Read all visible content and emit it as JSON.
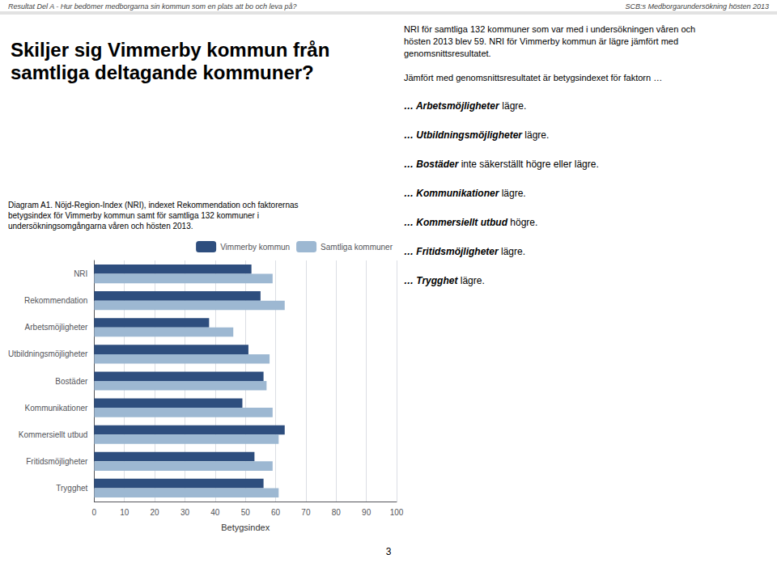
{
  "chart_data": {
    "type": "bar",
    "orientation": "horizontal",
    "title": "Skiljer sig Vimmerby kommun från\nsamtliga deltagande kommuner?",
    "annotations": [
      "Resultat Del A - Hur bedömer medborgarna sin kommun som en plats att bo och leva på?",
      "SCB:s Medborgarundersökning hösten 2013",
      "Diagram A1. Nöjd-Region-Index (NRI), indexet Rekommendation och faktorernas\nbetygsindex för Vimmerby kommun samt för samtliga 132 kommuner i\nundersökningsomgångarna våren och hösten 2013.",
      "NRI för samtliga 132 kommuner som var med i undersökningen våren och\nhösten 2013 blev 59. NRI för Vimmerby kommun är lägre jämfört med\ngenomsnittsresultatet.",
      "Jämfört med genomsnittsresultatet är betygsindexet för faktorn …",
      [
        "… Arbetsmöjligheter",
        " lägre."
      ],
      [
        "… Utbildningsmöjligheter",
        " lägre."
      ],
      [
        "… Bostäder",
        " inte säkerställt högre eller lägre."
      ],
      [
        "… Kommunikationer",
        " lägre."
      ],
      [
        "… Kommersiellt utbud",
        " högre."
      ],
      [
        "… Fritidsmöjligheter",
        " lägre."
      ],
      [
        "… Trygghet",
        " lägre."
      ],
      "3"
    ],
    "categories": [
      "NRI",
      "Rekommendation",
      "Arbetsmöjligheter",
      "Utbildningsmöjligheter",
      "Bostäder",
      "Kommunikationer",
      "Kommersiellt utbud",
      "Fritidsmöjligheter",
      "Trygghet"
    ],
    "series": [
      {
        "name": "Vimmerby kommun",
        "color": "#2E4E7E",
        "values": [
          52,
          55,
          38,
          51,
          56,
          49,
          63,
          53,
          56
        ]
      },
      {
        "name": "Samtliga kommuner",
        "color": "#9DB8D2",
        "values": [
          59,
          63,
          46,
          58,
          57,
          59,
          61,
          59,
          61
        ]
      }
    ],
    "xlabel": "Betygsindex",
    "xlim": [
      0,
      100
    ],
    "xticks": [
      0,
      10,
      20,
      30,
      40,
      50,
      60,
      70,
      80,
      90,
      100
    ],
    "grid": true,
    "legend": "upper right"
  }
}
